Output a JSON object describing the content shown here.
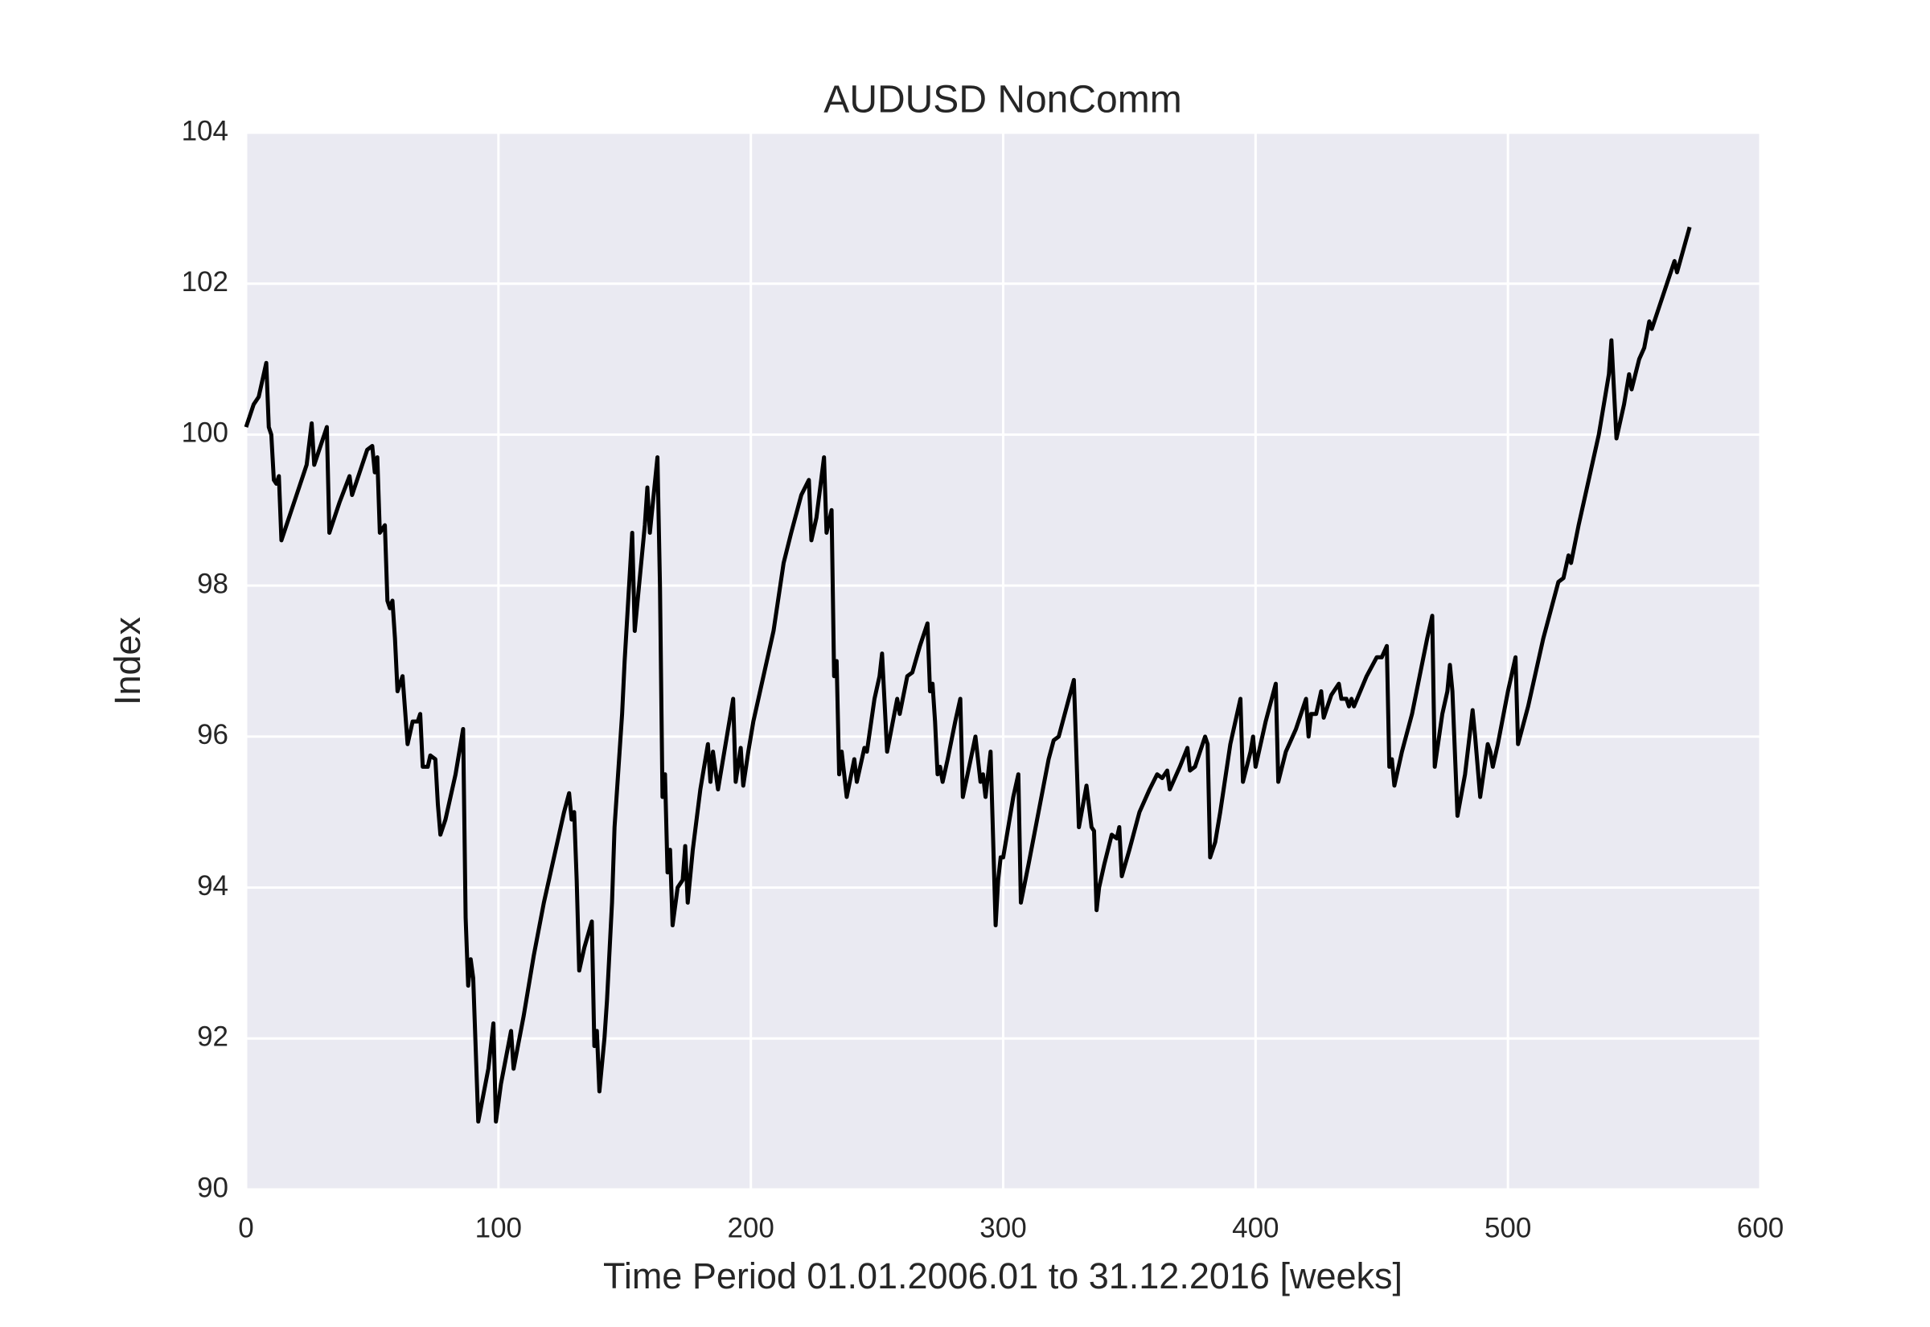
{
  "chart_data": {
    "type": "line",
    "title": "AUDUSD NonComm",
    "xlabel": "Time Period 01.01.2006.01 to 31.12.2016 [weeks]",
    "ylabel": "Index",
    "x": [
      0,
      3,
      5,
      8,
      9,
      10,
      11,
      12,
      13,
      14,
      20,
      24,
      26,
      27,
      32,
      33,
      37,
      41,
      42,
      48,
      50,
      51,
      52,
      53,
      55,
      56,
      57,
      58,
      59,
      60,
      62,
      64,
      66,
      68,
      69,
      70,
      72,
      73,
      75,
      76,
      77,
      79,
      83,
      86,
      87,
      88,
      89,
      90,
      92,
      96,
      98,
      99,
      101,
      105,
      106,
      110,
      114,
      118,
      122,
      126,
      128,
      129,
      130,
      131,
      132,
      134,
      137,
      138,
      139,
      140,
      142,
      143,
      145,
      146,
      149,
      150,
      153,
      154,
      158,
      159,
      160,
      163,
      164,
      165,
      166,
      167,
      168,
      169,
      171,
      173,
      174,
      175,
      177,
      180,
      183,
      184,
      185,
      187,
      191,
      193,
      194,
      196,
      197,
      199,
      201,
      205,
      209,
      213,
      216,
      220,
      223,
      224,
      226,
      229,
      230,
      232,
      233,
      234,
      235,
      236,
      238,
      241,
      242,
      245,
      246,
      249,
      251,
      252,
      254,
      258,
      259,
      262,
      264,
      267,
      270,
      271,
      272,
      273,
      274,
      275,
      276,
      278,
      281,
      283,
      284,
      289,
      291,
      292,
      293,
      295,
      297,
      298,
      299,
      300,
      304,
      306,
      307,
      310,
      314,
      318,
      320,
      322,
      326,
      328,
      330,
      333,
      335,
      336,
      337,
      338,
      340,
      343,
      345,
      346,
      347,
      350,
      354,
      358,
      361,
      363,
      365,
      366,
      370,
      373,
      374,
      376,
      378,
      380,
      381,
      382,
      384,
      386,
      390,
      392,
      394,
      395,
      398,
      399,
      400,
      402,
      404,
      408,
      409,
      412,
      416,
      418,
      420,
      421,
      422,
      424,
      426,
      427,
      430,
      433,
      434,
      436,
      437,
      438,
      439,
      444,
      448,
      450,
      452,
      453,
      454,
      455,
      458,
      462,
      465,
      468,
      470,
      471,
      474,
      476,
      477,
      478,
      480,
      483,
      486,
      487,
      489,
      492,
      493,
      494,
      496,
      500,
      503,
      504,
      508,
      512,
      514,
      518,
      520,
      522,
      524,
      525,
      528,
      530,
      534,
      536,
      540,
      541,
      543,
      546,
      548,
      549,
      552,
      554,
      556,
      557,
      562,
      566,
      567,
      572
    ],
    "series": [
      {
        "name": "AUDUSD NonComm",
        "color": "#000000",
        "values": [
          100.1,
          100.4,
          100.5,
          100.95,
          100.1,
          100.0,
          99.4,
          99.35,
          99.45,
          98.6,
          99.2,
          99.6,
          100.15,
          99.6,
          100.1,
          98.7,
          99.1,
          99.45,
          99.2,
          99.8,
          99.85,
          99.5,
          99.7,
          98.7,
          98.8,
          97.8,
          97.7,
          97.8,
          97.3,
          96.6,
          96.8,
          95.9,
          96.2,
          96.2,
          96.3,
          95.6,
          95.6,
          95.75,
          95.7,
          95.1,
          94.7,
          94.9,
          95.5,
          96.1,
          93.6,
          92.7,
          93.05,
          92.8,
          90.9,
          91.6,
          92.2,
          90.9,
          91.4,
          92.1,
          91.6,
          92.3,
          93.1,
          93.8,
          94.4,
          95.0,
          95.25,
          94.9,
          95.0,
          94.1,
          92.9,
          93.2,
          93.55,
          91.9,
          92.1,
          91.3,
          92.0,
          92.5,
          93.8,
          94.8,
          96.3,
          97.0,
          98.7,
          97.4,
          98.8,
          99.3,
          98.7,
          99.7,
          98.0,
          95.2,
          95.5,
          94.2,
          94.5,
          93.5,
          94.0,
          94.1,
          94.55,
          93.8,
          94.5,
          95.3,
          95.9,
          95.4,
          95.8,
          95.3,
          96.1,
          96.5,
          95.4,
          95.85,
          95.35,
          95.8,
          96.2,
          96.8,
          97.4,
          98.3,
          98.7,
          99.2,
          99.4,
          98.6,
          98.9,
          99.7,
          98.7,
          99.0,
          96.8,
          97.0,
          95.5,
          95.8,
          95.2,
          95.7,
          95.4,
          95.85,
          95.8,
          96.5,
          96.8,
          97.1,
          95.8,
          96.5,
          96.3,
          96.8,
          96.85,
          97.2,
          97.5,
          96.6,
          96.7,
          96.2,
          95.5,
          95.6,
          95.4,
          95.7,
          96.2,
          96.5,
          95.2,
          96.0,
          95.4,
          95.5,
          95.2,
          95.8,
          93.5,
          94.1,
          94.4,
          94.4,
          95.2,
          95.5,
          93.8,
          94.3,
          95.0,
          95.7,
          95.95,
          96.0,
          96.5,
          96.75,
          94.8,
          95.35,
          94.8,
          94.75,
          93.7,
          94.0,
          94.3,
          94.7,
          94.65,
          94.8,
          94.15,
          94.5,
          95.0,
          95.3,
          95.5,
          95.45,
          95.55,
          95.3,
          95.6,
          95.85,
          95.55,
          95.6,
          95.8,
          96.0,
          95.9,
          94.4,
          94.6,
          95.0,
          95.9,
          96.2,
          96.5,
          95.4,
          95.8,
          96.0,
          95.6,
          95.9,
          96.2,
          96.7,
          95.4,
          95.8,
          96.1,
          96.3,
          96.5,
          96.0,
          96.3,
          96.3,
          96.6,
          96.25,
          96.55,
          96.7,
          96.5,
          96.5,
          96.4,
          96.5,
          96.4,
          96.8,
          97.05,
          97.05,
          97.2,
          95.6,
          95.7,
          95.35,
          95.8,
          96.3,
          96.8,
          97.3,
          97.6,
          95.6,
          96.3,
          96.6,
          96.95,
          96.6,
          94.95,
          95.5,
          96.35,
          96.0,
          95.2,
          95.9,
          95.8,
          95.6,
          95.9,
          96.6,
          97.05,
          95.9,
          96.4,
          97.0,
          97.3,
          97.8,
          98.05,
          98.1,
          98.4,
          98.3,
          98.8,
          99.1,
          99.7,
          100.0,
          100.8,
          101.25,
          99.95,
          100.4,
          100.8,
          100.6,
          101.0,
          101.15,
          101.5,
          101.4,
          101.9,
          102.3,
          102.15,
          102.75
        ]
      }
    ],
    "xlim": [
      0,
      600
    ],
    "xticks": [
      0,
      100,
      200,
      300,
      400,
      500,
      600
    ],
    "ylim": [
      90,
      104
    ],
    "yticks": [
      90,
      92,
      94,
      96,
      98,
      100,
      102,
      104
    ],
    "grid": true,
    "background": "#eaeaf2"
  }
}
